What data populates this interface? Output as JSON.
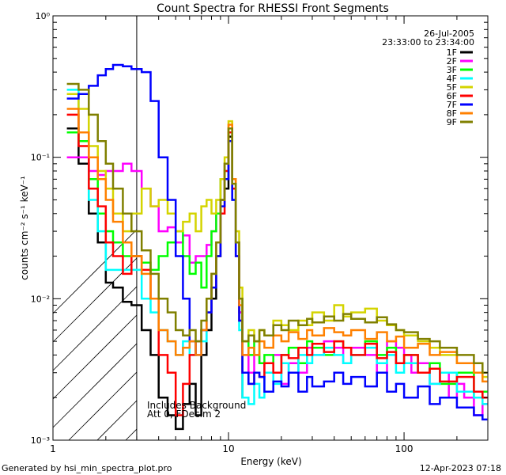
{
  "footer": {
    "generated_by": "Generated by hsi_min_spectra_plot.pro",
    "timestamp": "12-Apr-2023 07:18"
  },
  "chart_data": {
    "type": "line",
    "title": "Count Spectra for RHESSI Front Segments",
    "xlabel": "Energy (keV)",
    "ylabel": "counts cm⁻² s⁻¹ keV⁻¹",
    "x_scale": "log",
    "y_scale": "log",
    "xlim": [
      1,
      300
    ],
    "ylim": [
      0.001,
      1.0
    ],
    "x_tick_labels": [
      "1",
      "10",
      "100"
    ],
    "y_tick_labels": [
      "10⁻³",
      "10⁻²",
      "10⁻¹",
      "10⁰"
    ],
    "date": "26-Jul-2005",
    "time_range": "23:33:00 to 23:34:00",
    "legend_position": "top-right",
    "annotations": [
      "Includes Background",
      "Att 0, FDecim 2"
    ],
    "hatched_region_xmax": 3,
    "series": [
      {
        "name": "1F",
        "color": "#000000",
        "x": [
          1.2,
          1.4,
          1.6,
          1.8,
          2.0,
          2.2,
          2.5,
          2.8,
          3.2,
          3.6,
          4.0,
          4.5,
          5.0,
          5.5,
          6.0,
          6.5,
          7.0,
          7.5,
          8.0,
          8.5,
          9.0,
          9.5,
          10.0,
          10.5,
          11.0,
          11.5,
          12.0
        ],
        "y": [
          0.16,
          0.09,
          0.04,
          0.025,
          0.013,
          0.012,
          0.0095,
          0.009,
          0.006,
          0.004,
          0.002,
          0.0015,
          0.0012,
          0.0018,
          0.0025,
          0.0015,
          0.004,
          0.006,
          0.01,
          0.02,
          0.05,
          0.06,
          0.14,
          0.07,
          0.025,
          0.008,
          0.002
        ]
      },
      {
        "name": "2F",
        "color": "#ff00ff",
        "x": [
          1.2,
          1.4,
          1.6,
          1.8,
          2.0,
          2.2,
          2.5,
          2.8,
          3.2,
          3.6,
          4.0,
          4.5,
          5.0,
          5.5,
          6.0,
          6.5,
          7.0,
          7.5,
          8.0,
          8.5,
          9.0,
          9.5,
          10.0,
          10.5,
          11.0,
          11.5,
          12.0,
          13,
          14,
          15,
          16,
          18,
          20,
          22,
          25,
          28,
          30,
          35,
          40,
          45,
          50,
          60,
          70,
          80,
          90,
          100,
          110,
          120,
          140,
          160,
          180,
          200,
          220,
          250,
          280
        ],
        "y": [
          0.1,
          0.1,
          0.08,
          0.075,
          0.08,
          0.08,
          0.09,
          0.08,
          0.06,
          0.045,
          0.03,
          0.032,
          0.025,
          0.028,
          0.018,
          0.02,
          0.02,
          0.024,
          0.03,
          0.04,
          0.07,
          0.09,
          0.13,
          0.05,
          0.02,
          0.008,
          0.004,
          0.003,
          0.004,
          0.0035,
          0.003,
          0.004,
          0.0025,
          0.0035,
          0.003,
          0.0045,
          0.004,
          0.005,
          0.0045,
          0.0035,
          0.0045,
          0.004,
          0.003,
          0.005,
          0.0045,
          0.004,
          0.003,
          0.0035,
          0.0025,
          0.003,
          0.002,
          0.0025,
          0.002,
          0.0015,
          0.0018
        ]
      },
      {
        "name": "3F",
        "color": "#00ff00",
        "x": [
          1.2,
          1.4,
          1.6,
          1.8,
          2.0,
          2.2,
          2.5,
          2.8,
          3.2,
          3.6,
          4.0,
          4.5,
          5.0,
          5.5,
          6.0,
          6.5,
          7.0,
          7.5,
          8.0,
          8.5,
          9.0,
          9.5,
          10.0,
          10.5,
          11.0,
          11.5,
          12.0,
          13,
          14,
          15,
          16,
          18,
          20,
          22,
          25,
          28,
          30,
          35,
          40,
          45,
          50,
          60,
          70,
          80,
          90,
          100,
          120,
          140,
          160,
          200,
          250,
          280
        ],
        "y": [
          0.15,
          0.13,
          0.07,
          0.04,
          0.03,
          0.025,
          0.02,
          0.02,
          0.018,
          0.016,
          0.02,
          0.025,
          0.03,
          0.02,
          0.015,
          0.018,
          0.012,
          0.02,
          0.03,
          0.04,
          0.07,
          0.09,
          0.15,
          0.06,
          0.025,
          0.01,
          0.005,
          0.004,
          0.005,
          0.0035,
          0.004,
          0.003,
          0.004,
          0.0045,
          0.0035,
          0.005,
          0.0045,
          0.004,
          0.005,
          0.0045,
          0.004,
          0.005,
          0.004,
          0.0045,
          0.0035,
          0.004,
          0.003,
          0.0035,
          0.0025,
          0.003,
          0.002,
          0.0022
        ]
      },
      {
        "name": "4F",
        "color": "#00ffff",
        "x": [
          1.2,
          1.4,
          1.6,
          1.8,
          2.0,
          2.2,
          2.5,
          2.8,
          3.2,
          3.6,
          4.0,
          4.5,
          5.0,
          5.5,
          6.0,
          6.5,
          7.0,
          7.5,
          8.0,
          8.5,
          9.0,
          9.5,
          10.0,
          10.5,
          11.0,
          11.5,
          12.0,
          13,
          14,
          15,
          16,
          18,
          20,
          22,
          25,
          28,
          30,
          35,
          40,
          45,
          50,
          60,
          70,
          80,
          90,
          100,
          120,
          140,
          160,
          200,
          250,
          280
        ],
        "y": [
          0.3,
          0.15,
          0.05,
          0.03,
          0.016,
          0.016,
          0.016,
          0.016,
          0.01,
          0.008,
          0.006,
          0.005,
          0.004,
          0.005,
          0.004,
          0.005,
          0.005,
          0.008,
          0.012,
          0.02,
          0.05,
          0.08,
          0.15,
          0.05,
          0.02,
          0.006,
          0.002,
          0.0018,
          0.0025,
          0.002,
          0.003,
          0.0025,
          0.0035,
          0.003,
          0.004,
          0.0035,
          0.004,
          0.0045,
          0.004,
          0.0035,
          0.004,
          0.0045,
          0.0035,
          0.004,
          0.003,
          0.0035,
          0.003,
          0.0025,
          0.003,
          0.0022,
          0.002,
          0.0018
        ]
      },
      {
        "name": "5F",
        "color": "#d4d400",
        "x": [
          1.2,
          1.4,
          1.6,
          1.8,
          2.0,
          2.2,
          2.5,
          2.8,
          3.2,
          3.6,
          4.0,
          4.5,
          5.0,
          5.5,
          6.0,
          6.5,
          7.0,
          7.5,
          8.0,
          8.5,
          9.0,
          9.5,
          10.0,
          10.5,
          11.0,
          11.5,
          12.0,
          13,
          14,
          15,
          16,
          18,
          20,
          22,
          25,
          28,
          30,
          35,
          40,
          45,
          50,
          60,
          70,
          80,
          90,
          100,
          120,
          140,
          160,
          200,
          250,
          280
        ],
        "y": [
          0.28,
          0.22,
          0.12,
          0.08,
          0.06,
          0.04,
          0.03,
          0.04,
          0.06,
          0.045,
          0.05,
          0.04,
          0.03,
          0.035,
          0.04,
          0.03,
          0.045,
          0.05,
          0.04,
          0.05,
          0.07,
          0.1,
          0.18,
          0.07,
          0.03,
          0.012,
          0.005,
          0.006,
          0.005,
          0.006,
          0.0055,
          0.007,
          0.0065,
          0.006,
          0.007,
          0.0065,
          0.008,
          0.007,
          0.009,
          0.0075,
          0.008,
          0.0085,
          0.007,
          0.0065,
          0.006,
          0.0055,
          0.005,
          0.0045,
          0.004,
          0.0035,
          0.003,
          0.0028
        ]
      },
      {
        "name": "6F",
        "color": "#ff0000",
        "x": [
          1.2,
          1.4,
          1.6,
          1.8,
          2.0,
          2.2,
          2.5,
          2.8,
          3.2,
          3.6,
          4.0,
          4.5,
          5.0,
          5.5,
          6.0,
          6.5,
          7.0,
          7.5,
          8.0,
          8.5,
          9.0,
          9.5,
          10.0,
          10.5,
          11.0,
          11.5,
          12.0,
          13,
          14,
          15,
          16,
          18,
          20,
          22,
          25,
          28,
          30,
          35,
          40,
          45,
          50,
          60,
          70,
          80,
          90,
          100,
          120,
          140,
          160,
          200,
          250,
          280
        ],
        "y": [
          0.2,
          0.12,
          0.06,
          0.045,
          0.025,
          0.02,
          0.015,
          0.02,
          0.016,
          0.01,
          0.004,
          0.003,
          0.0015,
          0.0025,
          0.004,
          0.005,
          0.006,
          0.008,
          0.012,
          0.02,
          0.04,
          0.08,
          0.15,
          0.06,
          0.02,
          0.007,
          0.003,
          0.0025,
          0.003,
          0.0028,
          0.0035,
          0.003,
          0.004,
          0.0038,
          0.0045,
          0.004,
          0.0048,
          0.0042,
          0.005,
          0.0045,
          0.004,
          0.0048,
          0.0038,
          0.0042,
          0.0035,
          0.004,
          0.003,
          0.0032,
          0.0026,
          0.0028,
          0.0022,
          0.002
        ]
      },
      {
        "name": "7F",
        "color": "#0000ff",
        "x": [
          1.2,
          1.4,
          1.6,
          1.8,
          2.0,
          2.2,
          2.5,
          2.8,
          3.2,
          3.6,
          4.0,
          4.5,
          5.0,
          5.5,
          6.0,
          6.5,
          7.0,
          7.5,
          8.0,
          8.5,
          9.0,
          9.5,
          10.0,
          10.5,
          11.0,
          11.5,
          12.0,
          13,
          14,
          15,
          16,
          18,
          20,
          22,
          25,
          28,
          30,
          35,
          40,
          45,
          50,
          60,
          70,
          80,
          90,
          100,
          120,
          140,
          160,
          200,
          250,
          280
        ],
        "y": [
          0.26,
          0.28,
          0.32,
          0.38,
          0.42,
          0.45,
          0.44,
          0.42,
          0.4,
          0.25,
          0.1,
          0.05,
          0.02,
          0.01,
          0.005,
          0.004,
          0.006,
          0.008,
          0.012,
          0.02,
          0.045,
          0.07,
          0.13,
          0.05,
          0.02,
          0.007,
          0.003,
          0.0025,
          0.003,
          0.0028,
          0.0022,
          0.0026,
          0.0024,
          0.003,
          0.0022,
          0.0028,
          0.0024,
          0.0026,
          0.003,
          0.0025,
          0.0028,
          0.0024,
          0.003,
          0.0022,
          0.0025,
          0.002,
          0.0024,
          0.0018,
          0.002,
          0.0017,
          0.0015,
          0.0014
        ]
      },
      {
        "name": "8F",
        "color": "#ff8000",
        "x": [
          1.2,
          1.4,
          1.6,
          1.8,
          2.0,
          2.2,
          2.5,
          2.8,
          3.2,
          3.6,
          4.0,
          4.5,
          5.0,
          5.5,
          6.0,
          6.5,
          7.0,
          7.5,
          8.0,
          8.5,
          9.0,
          9.5,
          10.0,
          10.5,
          11.0,
          11.5,
          12.0,
          13,
          14,
          15,
          16,
          18,
          20,
          22,
          25,
          28,
          30,
          35,
          40,
          45,
          50,
          60,
          70,
          80,
          90,
          100,
          120,
          140,
          160,
          200,
          250,
          280
        ],
        "y": [
          0.22,
          0.15,
          0.1,
          0.07,
          0.05,
          0.035,
          0.025,
          0.02,
          0.015,
          0.01,
          0.006,
          0.005,
          0.004,
          0.0045,
          0.005,
          0.004,
          0.006,
          0.01,
          0.015,
          0.025,
          0.05,
          0.09,
          0.17,
          0.07,
          0.025,
          0.009,
          0.004,
          0.0045,
          0.004,
          0.005,
          0.0045,
          0.0055,
          0.005,
          0.0058,
          0.0052,
          0.006,
          0.0055,
          0.0062,
          0.0058,
          0.0055,
          0.006,
          0.0052,
          0.0058,
          0.005,
          0.0054,
          0.0045,
          0.0048,
          0.004,
          0.0042,
          0.0035,
          0.003,
          0.0026
        ]
      },
      {
        "name": "9F",
        "color": "#808000",
        "x": [
          1.2,
          1.4,
          1.6,
          1.8,
          2.0,
          2.2,
          2.5,
          2.8,
          3.2,
          3.6,
          4.0,
          4.5,
          5.0,
          5.5,
          6.0,
          6.5,
          7.0,
          7.5,
          8.0,
          8.5,
          9.0,
          9.5,
          10.0,
          10.5,
          11.0,
          11.5,
          12.0,
          13,
          14,
          15,
          16,
          18,
          20,
          22,
          25,
          28,
          30,
          35,
          40,
          45,
          50,
          60,
          70,
          80,
          90,
          100,
          120,
          140,
          160,
          200,
          250,
          280
        ],
        "y": [
          0.33,
          0.3,
          0.2,
          0.13,
          0.09,
          0.06,
          0.04,
          0.03,
          0.022,
          0.015,
          0.01,
          0.008,
          0.006,
          0.0055,
          0.006,
          0.005,
          0.007,
          0.01,
          0.015,
          0.025,
          0.05,
          0.09,
          0.16,
          0.065,
          0.025,
          0.01,
          0.005,
          0.0055,
          0.005,
          0.006,
          0.0055,
          0.0065,
          0.006,
          0.007,
          0.0065,
          0.0072,
          0.0068,
          0.0075,
          0.007,
          0.0078,
          0.0072,
          0.0068,
          0.0074,
          0.0066,
          0.006,
          0.0058,
          0.0052,
          0.005,
          0.0045,
          0.004,
          0.0035,
          0.003
        ]
      }
    ]
  }
}
